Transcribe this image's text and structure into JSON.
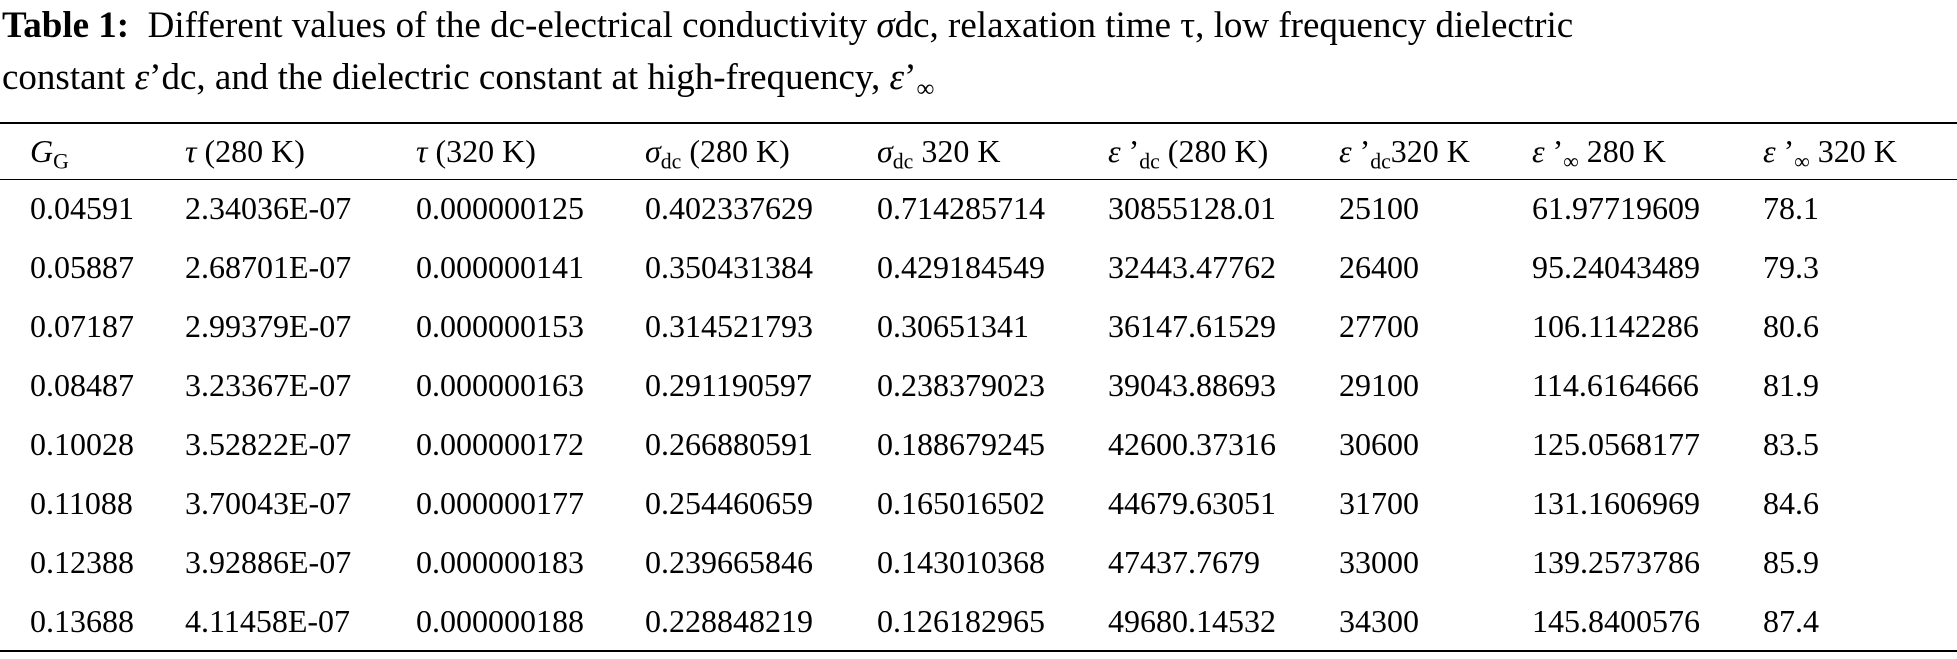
{
  "caption": {
    "lines": [
      [
        {
          "text": "Table 1:",
          "bold": true
        },
        {
          "text": "  Different values of the dc-electrical conductivity "
        },
        {
          "text": "σ",
          "italic": true
        },
        {
          "text": "dc, relaxation time τ, low frequency dielectric"
        }
      ],
      [
        {
          "text": "constant "
        },
        {
          "text": "ε",
          "italic": true
        },
        {
          "text": "’dc, and the dielectric constant at high-frequency, "
        },
        {
          "text": "ε",
          "italic": true
        },
        {
          "text": "’"
        },
        {
          "text": "∞",
          "sub": true
        }
      ]
    ]
  },
  "table": {
    "headers": [
      [
        {
          "text": "G",
          "italic": true
        },
        {
          "text": "G",
          "sub": true
        }
      ],
      [
        {
          "text": "τ",
          "italic": true
        },
        {
          "text": " (280 K)"
        }
      ],
      [
        {
          "text": "τ",
          "italic": true
        },
        {
          "text": " (320 K)"
        }
      ],
      [
        {
          "text": "σ",
          "italic": true
        },
        {
          "text": "dc",
          "sub": true
        },
        {
          "text": " (280 K)"
        }
      ],
      [
        {
          "text": "σ",
          "italic": true
        },
        {
          "text": "dc",
          "sub": true
        },
        {
          "text": " 320 K"
        }
      ],
      [
        {
          "text": "ε",
          "italic": true
        },
        {
          "text": " ’"
        },
        {
          "text": "dc",
          "sub": true
        },
        {
          "text": " (280 K)"
        }
      ],
      [
        {
          "text": "ε",
          "italic": true
        },
        {
          "text": " ’"
        },
        {
          "text": "dc",
          "sub": true
        },
        {
          "text": "320 K"
        }
      ],
      [
        {
          "text": "ε",
          "italic": true
        },
        {
          "text": " ’"
        },
        {
          "text": "∞",
          "sub": true
        },
        {
          "text": " 280 K"
        }
      ],
      [
        {
          "text": "ε",
          "italic": true
        },
        {
          "text": " ’"
        },
        {
          "text": "∞",
          "sub": true
        },
        {
          "text": " 320 K"
        }
      ]
    ],
    "rows": [
      [
        "0.04591",
        "2.34036E-07",
        "0.000000125",
        "0.402337629",
        "0.714285714",
        "30855128.01",
        "25100",
        "61.97719609",
        "78.1"
      ],
      [
        "0.05887",
        "2.68701E-07",
        "0.000000141",
        "0.350431384",
        "0.429184549",
        "32443.47762",
        "26400",
        "95.24043489",
        "79.3"
      ],
      [
        "0.07187",
        "2.99379E-07",
        "0.000000153",
        "0.314521793",
        "0.30651341",
        "36147.61529",
        "27700",
        "106.1142286",
        "80.6"
      ],
      [
        "0.08487",
        "3.23367E-07",
        "0.000000163",
        "0.291190597",
        "0.238379023",
        "39043.88693",
        "29100",
        "114.6164666",
        "81.9"
      ],
      [
        "0.10028",
        "3.52822E-07",
        "0.000000172",
        "0.266880591",
        "0.188679245",
        "42600.37316",
        "30600",
        "125.0568177",
        "83.5"
      ],
      [
        "0.11088",
        "3.70043E-07",
        "0.000000177",
        "0.254460659",
        "0.165016502",
        "44679.63051",
        "31700",
        "131.1606969",
        "84.6"
      ],
      [
        "0.12388",
        "3.92886E-07",
        "0.000000183",
        "0.239665846",
        "0.143010368",
        "47437.7679",
        "33000",
        "139.2573786",
        "85.9"
      ],
      [
        "0.13688",
        "4.11458E-07",
        "0.000000188",
        "0.228848219",
        "0.126182965",
        "49680.14532",
        "34300",
        "145.8400576",
        "87.4"
      ]
    ]
  }
}
